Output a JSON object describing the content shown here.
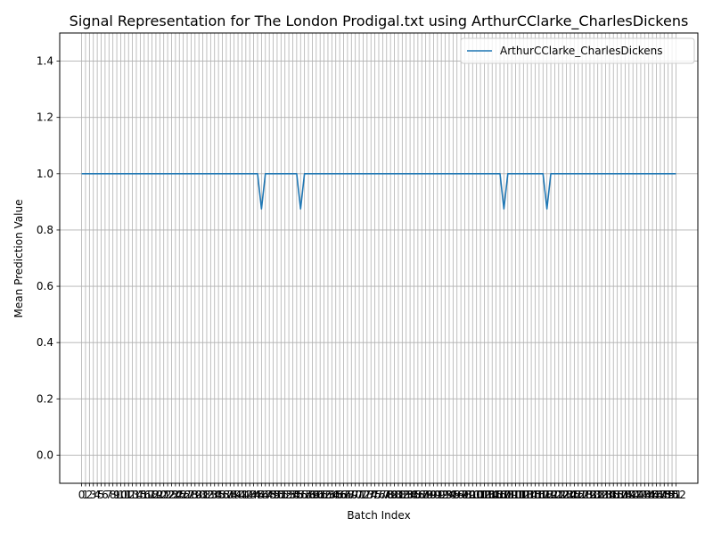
{
  "chart_data": {
    "type": "line",
    "title": "Signal Representation for The London Prodigal.txt using ArthurCClarke_CharlesDickens",
    "xlabel": "Batch Index",
    "ylabel": "Mean Prediction Value",
    "x_start": 0,
    "x_end": 152,
    "xlim": [
      -5.6,
      157.6
    ],
    "ylim": [
      -0.1,
      1.5
    ],
    "y_ticks": [
      0.0,
      0.2,
      0.4,
      0.6,
      0.8,
      1.0,
      1.2,
      1.4
    ],
    "grid": true,
    "legend_position": "top-right",
    "series": [
      {
        "name": "ArthurCClarke_CharlesDickens",
        "color": "#1f77b4",
        "default_value": 1.0,
        "dips": [
          {
            "x": 46,
            "value": 0.875
          },
          {
            "x": 56,
            "value": 0.875
          },
          {
            "x": 108,
            "value": 0.875
          },
          {
            "x": 119,
            "value": 0.875
          }
        ]
      }
    ]
  }
}
